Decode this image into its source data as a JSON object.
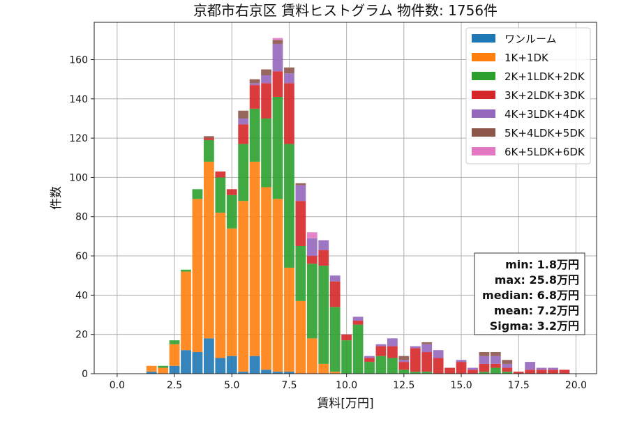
{
  "chart_data": {
    "type": "bar",
    "title": "京都市右京区 賃料ヒストグラム 物件数: 1756件",
    "xlabel": "賃料[万円]",
    "ylabel": "件数",
    "xlim": [
      -1.0,
      20.9
    ],
    "ylim": [
      0,
      179
    ],
    "xticks": [
      "0.0",
      "2.5",
      "5.0",
      "7.5",
      "10.0",
      "12.5",
      "15.0",
      "17.5",
      "20.0"
    ],
    "xtick_values": [
      0,
      2.5,
      5,
      7.5,
      10,
      12.5,
      15,
      17.5,
      20
    ],
    "yticks": [
      "0",
      "20",
      "40",
      "60",
      "80",
      "100",
      "120",
      "140",
      "160"
    ],
    "ytick_values": [
      0,
      20,
      40,
      60,
      80,
      100,
      120,
      140,
      160
    ],
    "grid": true,
    "legend_position": "top-right",
    "bin_width": 0.5,
    "bins": [
      1.5,
      2.0,
      2.5,
      3.0,
      3.5,
      4.0,
      4.5,
      5.0,
      5.5,
      6.0,
      6.5,
      7.0,
      7.5,
      8.0,
      8.5,
      9.0,
      9.5,
      10.0,
      10.5,
      11.0,
      11.5,
      12.0,
      12.5,
      13.0,
      13.5,
      14.0,
      14.5,
      15.0,
      15.5,
      16.0,
      16.5,
      17.0,
      17.5,
      18.0,
      18.5,
      19.0,
      19.5
    ],
    "series": [
      {
        "name": "ワンルーム",
        "color": "#1f77b4",
        "values": [
          1,
          0,
          4,
          12,
          11,
          18,
          8,
          9,
          1,
          9,
          2,
          1,
          1,
          0,
          0,
          0,
          0,
          0,
          0,
          0,
          0,
          0,
          0,
          0,
          0,
          0,
          0,
          0,
          0,
          0,
          0,
          0,
          0,
          0,
          0,
          0,
          0
        ]
      },
      {
        "name": "1K+1DK",
        "color": "#ff7f0e",
        "values": [
          3,
          3,
          11,
          40,
          78,
          90,
          74,
          65,
          87,
          99,
          93,
          88,
          53,
          37,
          18,
          5,
          1,
          0,
          0,
          0,
          0,
          0,
          0,
          0,
          0,
          0,
          0,
          0,
          0,
          0,
          0,
          0,
          0,
          0,
          0,
          0,
          0
        ]
      },
      {
        "name": "2K+1LDK+2DK",
        "color": "#2ca02c",
        "values": [
          0,
          1,
          2,
          1,
          5,
          11,
          18,
          17,
          29,
          27,
          35,
          52,
          63,
          28,
          38,
          50,
          33,
          17,
          25,
          6,
          9,
          8,
          2,
          1,
          1,
          0,
          0,
          0,
          0,
          1,
          3,
          1,
          0,
          0,
          0,
          0,
          0
        ]
      },
      {
        "name": "3K+2LDK+3DK",
        "color": "#d62728",
        "values": [
          0,
          0,
          0,
          0,
          0,
          1,
          3,
          3,
          10,
          12,
          18,
          13,
          31,
          23,
          4,
          8,
          13,
          3,
          2,
          2,
          5,
          6,
          4,
          12,
          10,
          8,
          3,
          6,
          2,
          4,
          2,
          2,
          1,
          2,
          2,
          2,
          2
        ]
      },
      {
        "name": "4K+3LDK+4DK",
        "color": "#9467bd",
        "values": [
          0,
          0,
          0,
          0,
          0,
          0,
          0,
          0,
          3,
          1,
          4,
          14,
          5,
          8,
          9,
          5,
          3,
          0,
          2,
          1,
          1,
          4,
          1,
          1,
          4,
          4,
          0,
          1,
          1,
          4,
          4,
          2,
          0,
          4,
          1,
          1,
          0
        ]
      },
      {
        "name": "5K+4LDK+5DK",
        "color": "#8c564b",
        "values": [
          0,
          0,
          0,
          0,
          0,
          1,
          0,
          0,
          4,
          2,
          3,
          2,
          3,
          1,
          0,
          0,
          0,
          0,
          0,
          0,
          0,
          0,
          2,
          0,
          1,
          0,
          0,
          0,
          0,
          2,
          2,
          2,
          0,
          0,
          0,
          0,
          0
        ]
      },
      {
        "name": "6K+5LDK+6DK",
        "color": "#e377c2",
        "values": [
          0,
          0,
          0,
          0,
          0,
          0,
          0,
          0,
          0,
          0,
          0,
          1,
          0,
          0,
          3,
          0,
          0,
          0,
          0,
          0,
          0,
          0,
          0,
          0,
          0,
          0,
          0,
          0,
          0,
          0,
          0,
          0,
          0,
          0,
          0,
          0,
          0
        ]
      }
    ],
    "stats": [
      "min: 1.8万円",
      "max: 25.8万円",
      "median: 6.8万円",
      "mean: 7.2万円",
      "Sigma: 3.2万円"
    ]
  }
}
